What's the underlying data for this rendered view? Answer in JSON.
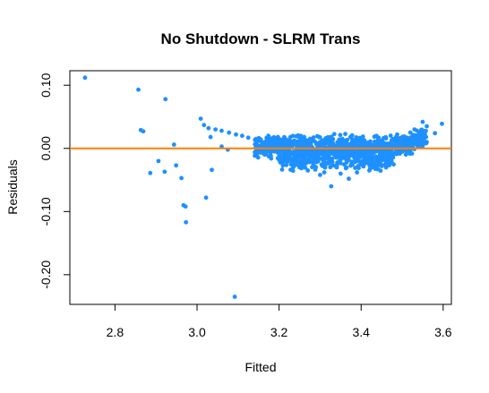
{
  "chart_data": {
    "type": "scatter",
    "title": "No Shutdown - SLRM Trans",
    "xlabel": "Fitted",
    "ylabel": "Residuals",
    "xlim": [
      2.69,
      3.62
    ],
    "ylim": [
      -0.247,
      0.123
    ],
    "x_ticks": [
      2.8,
      3.0,
      3.2,
      3.4,
      3.6
    ],
    "x_tick_labels": [
      "2.8",
      "3.0",
      "3.2",
      "3.4",
      "3.6"
    ],
    "y_ticks": [
      0.1,
      0.0,
      -0.1,
      -0.2
    ],
    "y_tick_labels": [
      "0.10",
      "0.00",
      "-0.10",
      "-0.20"
    ],
    "grid": false,
    "point_color": "#1E90FF",
    "reference_line": {
      "y": 0.0,
      "color": "#FF7F00"
    },
    "points": [
      [
        2.727,
        0.112
      ],
      [
        2.857,
        0.093
      ],
      [
        2.863,
        0.029
      ],
      [
        2.869,
        0.027
      ],
      [
        2.886,
        -0.039
      ],
      [
        2.906,
        -0.02
      ],
      [
        2.921,
        -0.037
      ],
      [
        2.923,
        0.078
      ],
      [
        2.944,
        0.006
      ],
      [
        2.949,
        -0.027
      ],
      [
        2.962,
        -0.047
      ],
      [
        2.967,
        -0.09
      ],
      [
        2.972,
        -0.092
      ],
      [
        2.973,
        -0.117
      ],
      [
        3.009,
        0.047
      ],
      [
        3.017,
        0.037
      ],
      [
        3.022,
        -0.078
      ],
      [
        3.033,
        0.018
      ],
      [
        3.036,
        -0.034
      ],
      [
        3.092,
        -0.235
      ],
      [
        3.028,
        0.032
      ],
      [
        3.045,
        0.03
      ],
      [
        3.06,
        0.028
      ],
      [
        3.078,
        0.025
      ],
      [
        3.095,
        0.022
      ],
      [
        3.11,
        0.02
      ],
      [
        3.125,
        0.017
      ],
      [
        3.06,
        0.003
      ],
      [
        3.075,
        -0.002
      ],
      [
        3.16,
        -0.005
      ],
      [
        3.18,
        -0.012
      ],
      [
        3.2,
        -0.018
      ],
      [
        3.23,
        -0.025
      ],
      [
        3.25,
        -0.03
      ],
      [
        3.27,
        -0.035
      ],
      [
        3.3,
        -0.042
      ],
      [
        3.327,
        -0.06
      ],
      [
        3.31,
        -0.038
      ],
      [
        3.35,
        -0.04
      ],
      [
        3.37,
        -0.048
      ],
      [
        3.39,
        -0.038
      ],
      [
        3.42,
        -0.035
      ],
      [
        3.45,
        -0.028
      ],
      [
        3.47,
        -0.02
      ],
      [
        3.55,
        0.042
      ],
      [
        3.56,
        0.035
      ],
      [
        3.58,
        0.024
      ],
      [
        3.597,
        0.039
      ],
      [
        3.2,
        0.015
      ],
      [
        3.25,
        0.012
      ],
      [
        3.3,
        0.01
      ],
      [
        3.35,
        0.008
      ],
      [
        3.4,
        0.006
      ],
      [
        3.45,
        0.007
      ],
      [
        3.5,
        0.012
      ],
      [
        3.54,
        0.018
      ],
      [
        3.52,
        0.025
      ],
      [
        3.53,
        0.03
      ],
      [
        3.18,
        0.008
      ],
      [
        3.22,
        0.005
      ],
      [
        3.28,
        -0.008
      ],
      [
        3.36,
        -0.015
      ],
      [
        3.41,
        -0.022
      ],
      [
        3.44,
        -0.018
      ],
      [
        3.49,
        0.002
      ],
      [
        3.51,
        -0.004
      ],
      [
        3.54,
        0.005
      ],
      [
        3.56,
        0.01
      ]
    ],
    "clusters": [
      {
        "x": [
          3.14,
          3.56
        ],
        "center": 0.002,
        "spread": 0.008,
        "n": 900
      },
      {
        "x": [
          3.2,
          3.48
        ],
        "center": -0.016,
        "spread": 0.009,
        "n": 350
      }
    ]
  }
}
